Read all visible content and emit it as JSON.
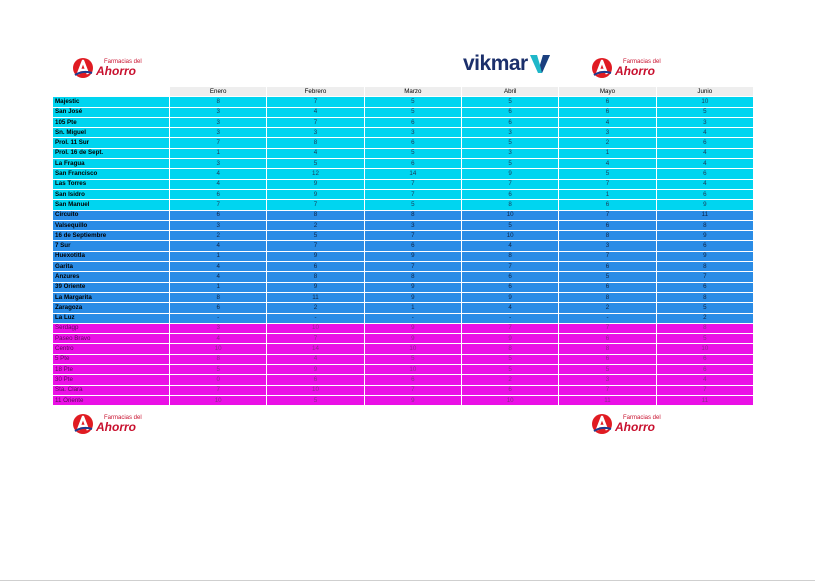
{
  "logo_farmacias": {
    "line1": "Farmacias del",
    "line2": "Ahorro"
  },
  "logo_vikmar": {
    "text": "vikmar"
  },
  "table": {
    "headers": [
      "",
      "Enero",
      "Febrero",
      "Marzo",
      "Abril",
      "Mayo",
      "Junio"
    ],
    "rows": [
      {
        "group": "cyan",
        "name": "Majestic",
        "values": [
          "8",
          "7",
          "5",
          "5",
          "6",
          "10"
        ]
      },
      {
        "group": "cyan",
        "name": "San José",
        "values": [
          "3",
          "4",
          "5",
          "6",
          "6",
          "5"
        ]
      },
      {
        "group": "cyan",
        "name": "105 Pte",
        "values": [
          "3",
          "7",
          "6",
          "6",
          "4",
          "3"
        ]
      },
      {
        "group": "cyan",
        "name": "Sn. Miguel",
        "values": [
          "3",
          "3",
          "3",
          "3",
          "3",
          "4"
        ]
      },
      {
        "group": "cyan",
        "name": "Prol. 11 Sur",
        "values": [
          "7",
          "8",
          "6",
          "5",
          "2",
          "6"
        ]
      },
      {
        "group": "cyan",
        "name": "Prol. 16 de Sept.",
        "values": [
          "1",
          "4",
          "5",
          "3",
          "1",
          "4"
        ]
      },
      {
        "group": "cyan",
        "name": "La Fragua",
        "values": [
          "3",
          "5",
          "6",
          "5",
          "4",
          "4"
        ]
      },
      {
        "group": "cyan",
        "name": "San Francisco",
        "values": [
          "4",
          "12",
          "14",
          "9",
          "5",
          "6"
        ]
      },
      {
        "group": "cyan",
        "name": "Las Torres",
        "values": [
          "4",
          "9",
          "7",
          "7",
          "7",
          "4"
        ]
      },
      {
        "group": "cyan",
        "name": "San Isidro",
        "values": [
          "6",
          "9",
          "7",
          "6",
          "1",
          "6"
        ]
      },
      {
        "group": "cyan",
        "name": "San Manuel",
        "values": [
          "7",
          "7",
          "5",
          "8",
          "6",
          "9"
        ]
      },
      {
        "group": "blue",
        "name": "Circuito",
        "values": [
          "6",
          "8",
          "8",
          "10",
          "7",
          "11"
        ]
      },
      {
        "group": "blue",
        "name": "Valsequillo",
        "values": [
          "3",
          "2",
          "3",
          "5",
          "6",
          "8"
        ]
      },
      {
        "group": "blue",
        "name": "16 de Septiembre",
        "values": [
          "2",
          "5",
          "7",
          "10",
          "8",
          "9"
        ]
      },
      {
        "group": "blue",
        "name": "7 Sur",
        "values": [
          "4",
          "7",
          "6",
          "4",
          "3",
          "6"
        ]
      },
      {
        "group": "blue",
        "name": "Huexotitla",
        "values": [
          "1",
          "9",
          "9",
          "8",
          "7",
          "9"
        ]
      },
      {
        "group": "blue",
        "name": "Garita",
        "values": [
          "4",
          "6",
          "7",
          "7",
          "6",
          "8"
        ]
      },
      {
        "group": "blue",
        "name": "Anzures",
        "values": [
          "4",
          "8",
          "8",
          "6",
          "5",
          "7"
        ]
      },
      {
        "group": "blue",
        "name": "39 Oriente",
        "values": [
          "1",
          "9",
          "9",
          "6",
          "6",
          "6"
        ]
      },
      {
        "group": "blue",
        "name": "La Margarita",
        "values": [
          "8",
          "11",
          "9",
          "9",
          "8",
          "8"
        ]
      },
      {
        "group": "blue",
        "name": "Zaragoza",
        "values": [
          "6",
          "2",
          "1",
          "4",
          "2",
          "5"
        ]
      },
      {
        "group": "blue",
        "name": "La Luz",
        "values": [
          "-",
          "-",
          "-",
          "-",
          "-",
          "2"
        ]
      },
      {
        "group": "mag",
        "name": "Serdagp",
        "values": [
          "3",
          "10",
          "9",
          "7",
          "7",
          "8"
        ]
      },
      {
        "group": "mag",
        "name": "Paseo Bravo",
        "values": [
          "4",
          "7",
          "9",
          "9",
          "6",
          "5"
        ]
      },
      {
        "group": "mag",
        "name": "Centro",
        "values": [
          "10",
          "14",
          "10",
          "8",
          "8",
          "10"
        ]
      },
      {
        "group": "mag",
        "name": "5 Pte",
        "values": [
          "8",
          "4",
          "5",
          "5",
          "6",
          "6"
        ]
      },
      {
        "group": "mag",
        "name": "18 Pte",
        "values": [
          "5",
          "9",
          "10",
          "5",
          "5",
          "6"
        ]
      },
      {
        "group": "mag",
        "name": "30 Pte",
        "values": [
          "0",
          "6",
          "6",
          "2",
          "3",
          "4"
        ]
      },
      {
        "group": "mag",
        "name": "Sta. Clara",
        "values": [
          "7",
          "10",
          "7",
          "6",
          "7",
          "7"
        ]
      },
      {
        "group": "mag",
        "name": "11 Oriente",
        "values": [
          "10",
          "5",
          "9",
          "10",
          "11",
          "11"
        ]
      }
    ]
  }
}
